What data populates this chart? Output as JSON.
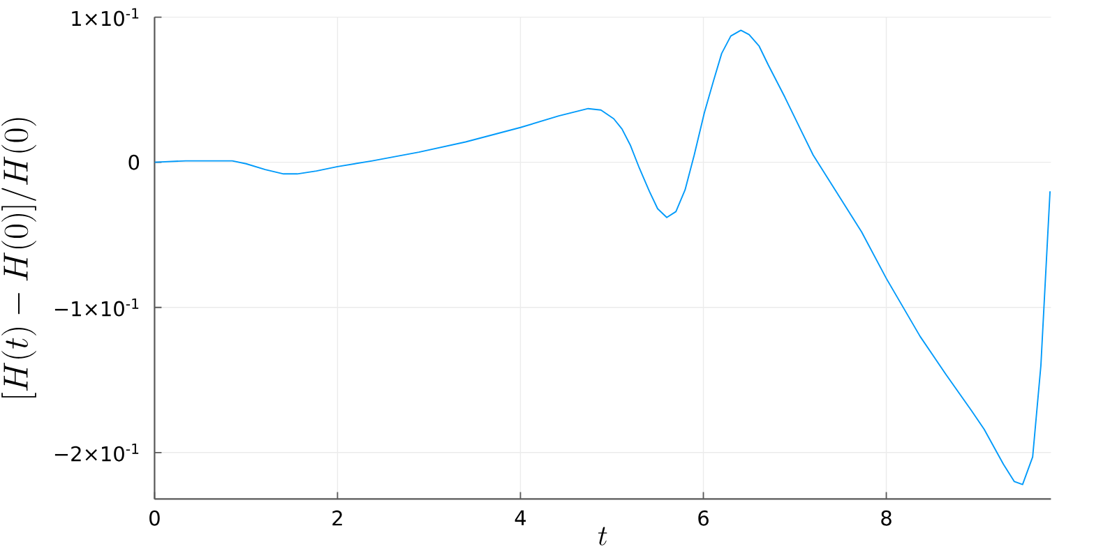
{
  "chart_data": {
    "type": "line",
    "xlabel": "t",
    "ylabel": "\\big[H(t) - H(0)\\big]/H(0)",
    "x": [
      0,
      0.34,
      0.65,
      0.85,
      1.0,
      1.21,
      1.41,
      1.56,
      1.77,
      2.0,
      2.38,
      2.89,
      3.4,
      4.0,
      4.42,
      4.74,
      4.88,
      5.02,
      5.11,
      5.2,
      5.3,
      5.41,
      5.5,
      5.6,
      5.7,
      5.8,
      5.9,
      6.01,
      6.11,
      6.2,
      6.3,
      6.41,
      6.5,
      6.61,
      6.71,
      6.89,
      7.06,
      7.2,
      7.45,
      7.73,
      8.0,
      8.37,
      8.65,
      8.93,
      9.07,
      9.28,
      9.4,
      9.49,
      9.6,
      9.69,
      9.79
    ],
    "series": [
      {
        "color": "#009afa",
        "values": [
          0,
          0.001,
          0.001,
          0.001,
          -0.001,
          -0.005,
          -0.008,
          -0.008,
          -0.006,
          -0.003,
          0.001,
          0.007,
          0.014,
          0.024,
          0.032,
          0.037,
          0.036,
          0.03,
          0.023,
          0.012,
          -0.004,
          -0.02,
          -0.032,
          -0.038,
          -0.034,
          -0.019,
          0.005,
          0.034,
          0.056,
          0.075,
          0.087,
          0.091,
          0.088,
          0.08,
          0.067,
          0.045,
          0.023,
          0.005,
          -0.02,
          -0.048,
          -0.08,
          -0.12,
          -0.146,
          -0.171,
          -0.184,
          -0.208,
          -0.22,
          -0.222,
          -0.203,
          -0.14,
          -0.02
        ]
      }
    ],
    "xlim": [
      0,
      9.8
    ],
    "ylim": [
      -0.232,
      0.1
    ],
    "xticks": [
      0,
      2,
      4,
      6,
      8
    ],
    "yticks": [
      {
        "value": 0.1,
        "label": "1×10$^{-1}$"
      },
      0,
      {
        "value": -0.1,
        "label": "−1×10$^{-1}$"
      },
      {
        "value": -0.2,
        "label": "−2×10$^{-1}$"
      }
    ],
    "grid": true,
    "line_style": "solid"
  }
}
